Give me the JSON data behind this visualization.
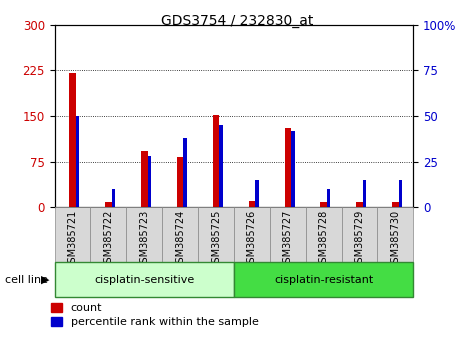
{
  "title": "GDS3754 / 232830_at",
  "samples": [
    "GSM385721",
    "GSM385722",
    "GSM385723",
    "GSM385724",
    "GSM385725",
    "GSM385726",
    "GSM385727",
    "GSM385728",
    "GSM385729",
    "GSM385730"
  ],
  "count_values": [
    220,
    8,
    93,
    82,
    152,
    10,
    130,
    8,
    8,
    8
  ],
  "percentile_values": [
    50,
    10,
    28,
    38,
    45,
    15,
    42,
    10,
    15,
    15
  ],
  "groups": [
    {
      "label": "cisplatin-sensitive",
      "start": 0,
      "end": 5,
      "color": "#ccffcc"
    },
    {
      "label": "cisplatin-resistant",
      "start": 5,
      "end": 10,
      "color": "#44dd44"
    }
  ],
  "left_ylim": [
    0,
    300
  ],
  "right_ylim": [
    0,
    100
  ],
  "left_yticks": [
    0,
    75,
    150,
    225,
    300
  ],
  "right_yticks": [
    0,
    25,
    50,
    75,
    100
  ],
  "bar_color_red": "#cc0000",
  "bar_color_blue": "#0000cc",
  "grid_color": "black",
  "legend_count_label": "count",
  "legend_pct_label": "percentile rank within the sample",
  "cell_line_label": "cell line",
  "left_ylabel_color": "#cc0000",
  "right_ylabel_color": "#0000cc",
  "sample_box_color": "#d8d8d8",
  "sample_box_edge": "#888888"
}
